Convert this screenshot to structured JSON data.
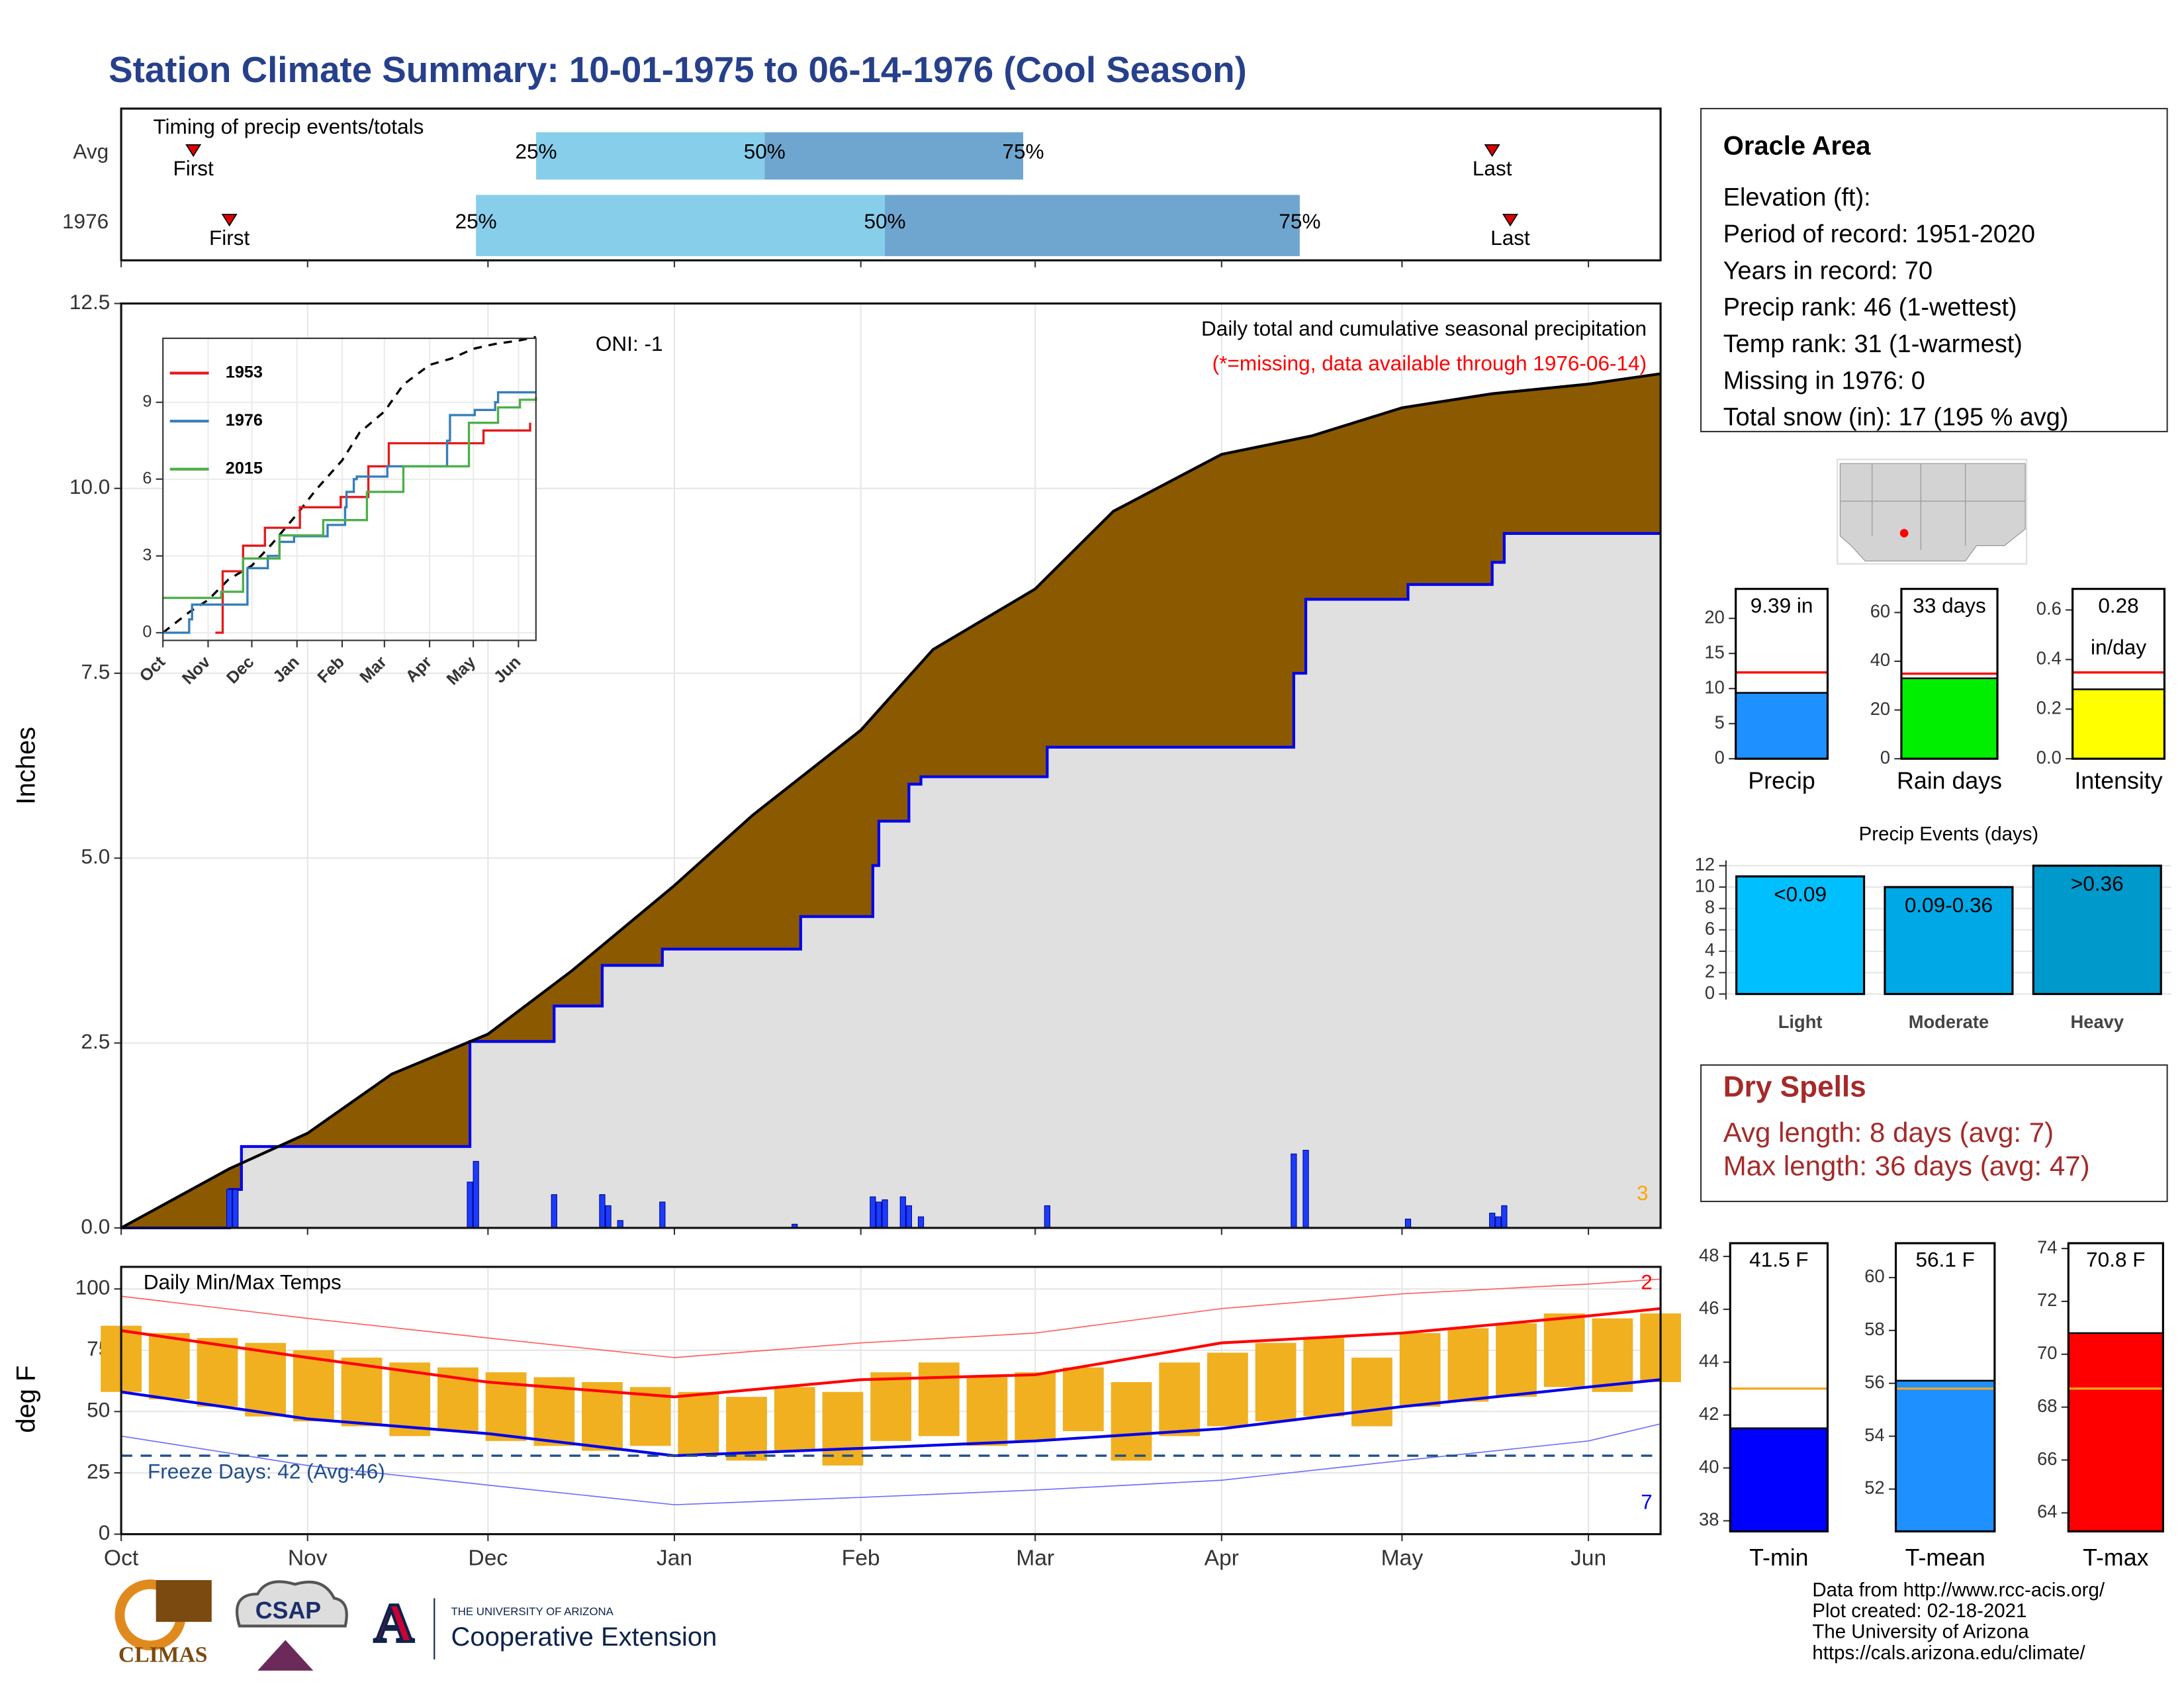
{
  "title": "Station Climate Summary: 10-01-1975 to 06-14-1976 (Cool Season)",
  "info": {
    "title": "Oracle Area",
    "lines": [
      "Elevation (ft):",
      "Period of record: 1951-2020",
      "Years in record: 70",
      "Precip rank: 46 (1-wettest)",
      "Temp rank: 31 (1-warmest)",
      "Missing in 1976: 0",
      "Total snow (in): 17 (195 % avg)"
    ]
  },
  "dry_spells": {
    "title": "Dry Spells",
    "lines": [
      "Avg length: 8 days (avg: 7)",
      "Max length: 36 days (avg: 47)"
    ]
  },
  "footer": [
    "Data from http://www.rcc-acis.org/",
    "Plot created: 02-18-2021",
    "The University of Arizona",
    "https://cals.arizona.edu/climate/"
  ],
  "logos": {
    "climas": "CLIMAS",
    "csap": "CSAP",
    "ua": "THE UNIVERSITY OF ARIZONA",
    "extension": "Cooperative Extension"
  },
  "chart_data": [
    {
      "type": "timing",
      "title": "Timing of precip events/totals",
      "categories": [
        "Avg",
        "1976"
      ],
      "quantile_labels": [
        "25%",
        "50%",
        "75%"
      ],
      "first_label": "First",
      "last_label": "Last",
      "first": [
        12,
        18
      ],
      "q25": [
        69,
        59
      ],
      "q50": [
        107,
        127
      ],
      "q75": [
        150,
        196
      ],
      "last": [
        228,
        231
      ],
      "colors": [
        "#87ceeb",
        "#6fa6cf"
      ],
      "marker_color": "#e00000",
      "xlim": [
        0,
        256
      ],
      "xticks": [
        0,
        31,
        61,
        92,
        123,
        152,
        183,
        213,
        244
      ]
    },
    {
      "type": "cumulative",
      "ylabel": "Inches",
      "oni": "ONI: -1",
      "subtitle": "Daily total and cumulative seasonal precipitation",
      "note": "(*=missing, data available through 1976-06-14)",
      "corner_label": "3",
      "xlim": [
        0,
        256
      ],
      "xticks": [
        0,
        31,
        61,
        92,
        123,
        152,
        183,
        213,
        244
      ],
      "ylim": [
        0,
        12.5
      ],
      "yticks": [
        {
          "value": 0,
          "label": "0.0"
        },
        {
          "value": 2.5,
          "label": "2.5"
        },
        {
          "value": 5,
          "label": "5.0"
        },
        {
          "value": 7.5,
          "label": "7.5"
        },
        {
          "value": 10,
          "label": "10.0"
        },
        {
          "value": 12.5,
          "label": "12.5"
        }
      ],
      "grid": true,
      "avg_cumulative": {
        "color": "#8b5a00",
        "x": [
          0,
          18,
          31,
          45,
          61,
          75,
          92,
          105,
          123,
          135,
          152,
          165,
          183,
          198,
          213,
          228,
          244,
          256
        ],
        "y": [
          0,
          0.8,
          1.28,
          2.08,
          2.62,
          3.48,
          4.63,
          5.58,
          6.73,
          7.82,
          8.64,
          9.69,
          10.46,
          10.71,
          11.09,
          11.28,
          11.41,
          11.55
        ]
      },
      "cumulative": {
        "color": "#0000ee",
        "fill": "#e0e0e0",
        "x": [
          0,
          18,
          20,
          58,
          72,
          80,
          90,
          113,
          125,
          126,
          131,
          133,
          154,
          195,
          197,
          214,
          228,
          230,
          256
        ],
        "y": [
          0,
          0.52,
          1.1,
          2.52,
          3.0,
          3.55,
          3.77,
          4.21,
          4.9,
          5.5,
          6.0,
          6.1,
          6.5,
          7.5,
          8.5,
          8.7,
          9.0,
          9.39,
          9.39
        ]
      },
      "daily": {
        "color": "#1a3cff",
        "x": [
          18,
          19,
          58,
          59,
          72,
          80,
          81,
          83,
          90,
          112,
          125,
          126,
          127,
          130,
          131,
          133,
          154,
          195,
          197,
          214,
          228,
          229,
          230
        ],
        "values": [
          0.52,
          0.52,
          0.62,
          0.9,
          0.45,
          0.45,
          0.3,
          0.1,
          0.35,
          0.05,
          0.42,
          0.35,
          0.38,
          0.42,
          0.3,
          0.15,
          0.3,
          1.0,
          1.05,
          0.12,
          0.2,
          0.15,
          0.3
        ]
      }
    },
    {
      "type": "line",
      "xlim": [
        0,
        256
      ],
      "xticks": [
        {
          "value": 0,
          "label": "Oct"
        },
        {
          "value": 31,
          "label": "Nov"
        },
        {
          "value": 61,
          "label": "Dec"
        },
        {
          "value": 92,
          "label": "Jan"
        },
        {
          "value": 123,
          "label": "Feb"
        },
        {
          "value": 152,
          "label": "Mar"
        },
        {
          "value": 183,
          "label": "Apr"
        },
        {
          "value": 213,
          "label": "May"
        },
        {
          "value": 244,
          "label": "Jun"
        }
      ],
      "ylim": [
        -0.3,
        11.5
      ],
      "yticks": [
        0,
        3,
        6,
        9
      ],
      "step": true,
      "series": [
        {
          "name": "1953",
          "color": "#e41a1c",
          "x": [
            36,
            41,
            55,
            70,
            94,
            122,
            141,
            155,
            203,
            220,
            252
          ],
          "y": [
            0,
            2.4,
            3.4,
            4.1,
            4.9,
            5.3,
            6.5,
            7.4,
            7.4,
            7.9,
            8.2
          ]
        },
        {
          "name": "1976",
          "color": "#377eb8",
          "x": [
            0,
            18,
            20,
            58,
            72,
            80,
            90,
            113,
            125,
            126,
            131,
            133,
            154,
            195,
            197,
            214,
            228,
            230,
            256
          ],
          "y": [
            0,
            0.52,
            1.1,
            2.52,
            3.0,
            3.55,
            3.77,
            4.21,
            4.9,
            5.5,
            6.0,
            6.1,
            6.5,
            7.5,
            8.5,
            8.7,
            9.0,
            9.39,
            9.39
          ]
        },
        {
          "name": "2015",
          "color": "#4daf4a",
          "x": [
            0,
            40,
            55,
            80,
            110,
            140,
            165,
            205,
            210,
            230,
            245,
            256
          ],
          "y": [
            1.36,
            1.6,
            2.9,
            3.8,
            4.4,
            5.5,
            6.5,
            6.5,
            8.2,
            8.8,
            9.1,
            9.2
          ]
        }
      ]
    },
    {
      "type": "temps",
      "title": "Daily Min/Max Temps",
      "ylabel": "deg F",
      "freeze": 32,
      "freeze_label": "Freeze Days: 42 (Avg:46)",
      "max_count_label": "2",
      "min_count_label": "7",
      "xlim": [
        0,
        256
      ],
      "xticks": [
        {
          "value": 0,
          "label": "Oct"
        },
        {
          "value": 31,
          "label": "Nov"
        },
        {
          "value": 61,
          "label": "Dec"
        },
        {
          "value": 92,
          "label": "Jan"
        },
        {
          "value": 123,
          "label": "Feb"
        },
        {
          "value": 152,
          "label": "Mar"
        },
        {
          "value": 183,
          "label": "Apr"
        },
        {
          "value": 213,
          "label": "May"
        },
        {
          "value": 244,
          "label": "Jun"
        }
      ],
      "ylim": [
        0,
        109
      ],
      "yticks": [
        0,
        25,
        50,
        75,
        100
      ],
      "grid": true,
      "normals": {
        "x": [
          0,
          31,
          61,
          92,
          123,
          152,
          183,
          213,
          244,
          256
        ],
        "max": [
          83,
          72,
          62,
          56,
          63,
          65,
          78,
          82,
          89,
          92
        ],
        "min": [
          58,
          47,
          41,
          32,
          35,
          38,
          43,
          52,
          60,
          63
        ],
        "record_max": [
          97,
          88,
          80,
          72,
          78,
          82,
          92,
          98,
          102,
          104
        ],
        "record_min": [
          40,
          28,
          20,
          12,
          15,
          18,
          22,
          30,
          38,
          45
        ]
      },
      "daily": {
        "color": "#f0b020",
        "x": [
          0,
          8,
          16,
          24,
          32,
          40,
          48,
          56,
          64,
          72,
          80,
          88,
          96,
          104,
          112,
          120,
          128,
          136,
          144,
          152,
          160,
          168,
          176,
          184,
          192,
          200,
          208,
          216,
          224,
          232,
          240,
          248,
          256
        ],
        "max": [
          85,
          82,
          80,
          78,
          75,
          72,
          70,
          68,
          66,
          64,
          62,
          60,
          58,
          56,
          60,
          58,
          66,
          70,
          64,
          66,
          68,
          62,
          70,
          74,
          78,
          80,
          72,
          82,
          84,
          86,
          90,
          88,
          90
        ],
        "min": [
          58,
          55,
          52,
          48,
          46,
          44,
          40,
          42,
          38,
          36,
          34,
          36,
          32,
          30,
          34,
          28,
          38,
          40,
          36,
          38,
          42,
          30,
          40,
          44,
          46,
          48,
          44,
          52,
          54,
          56,
          60,
          58,
          62
        ]
      }
    },
    {
      "type": "small_bar",
      "categories": [
        "Precip"
      ],
      "values": [
        9.39
      ],
      "value_labels": [
        "9.39 in"
      ],
      "average": 12.3,
      "avg_color": "#ff0000",
      "color": "#1e90ff",
      "ylim": [
        0,
        24.2
      ],
      "yticks": [
        0,
        5,
        10,
        15,
        20
      ]
    },
    {
      "type": "small_bar",
      "categories": [
        "Rain days"
      ],
      "values": [
        33
      ],
      "value_labels": [
        "33 days"
      ],
      "average": 34.9,
      "avg_color": "#ff0000",
      "color": "#00ee00",
      "ylim": [
        0,
        69.7
      ],
      "yticks": [
        0,
        20,
        40,
        60
      ]
    },
    {
      "type": "small_bar",
      "categories": [
        "Intensity"
      ],
      "values": [
        0.28
      ],
      "value_labels": [
        "0.28"
      ],
      "unit_label": "in/day",
      "average": 0.348,
      "avg_color": "#ff0000",
      "color": "#ffff00",
      "ylim": [
        0,
        0.685
      ],
      "yticks": [
        {
          "value": 0,
          "label": "0.0"
        },
        {
          "value": 0.2,
          "label": "0.2"
        },
        {
          "value": 0.4,
          "label": "0.4"
        },
        {
          "value": 0.6,
          "label": "0.6"
        }
      ]
    },
    {
      "type": "events_bar",
      "title": "Precip Events (days)",
      "categories": [
        "Light",
        "Moderate",
        "Heavy"
      ],
      "values": [
        11,
        10,
        12
      ],
      "bar_labels": [
        "<0.09",
        "0.09-0.36",
        ">0.36"
      ],
      "colors": [
        "#00bfff",
        "#00a9e6",
        "#0099cc"
      ],
      "ylim": [
        0,
        12.5
      ],
      "yticks": [
        0,
        2,
        4,
        6,
        8,
        10,
        12
      ]
    },
    {
      "type": "small_bar",
      "categories": [
        "T-min"
      ],
      "values": [
        41.5
      ],
      "value_labels": [
        "41.5 F"
      ],
      "average": 43.0,
      "avg_color": "#f5a623",
      "color": "#0000ff",
      "ylim": [
        37.6,
        48.5
      ],
      "yticks": [
        38,
        40,
        42,
        44,
        46,
        48
      ]
    },
    {
      "type": "small_bar",
      "categories": [
        "T-mean"
      ],
      "values": [
        56.1
      ],
      "value_labels": [
        "56.1 F"
      ],
      "average": 55.8,
      "avg_color": "#f5a623",
      "color": "#1e90ff",
      "ylim": [
        50.4,
        61.3
      ],
      "yticks": [
        52,
        54,
        56,
        58,
        60
      ]
    },
    {
      "type": "small_bar",
      "categories": [
        "T-max"
      ],
      "values": [
        70.8
      ],
      "value_labels": [
        "70.8 F"
      ],
      "average": 68.7,
      "avg_color": "#f5a623",
      "color": "#ff0000",
      "ylim": [
        63.3,
        74.2
      ],
      "yticks": [
        64,
        66,
        68,
        70,
        72,
        74
      ]
    }
  ]
}
